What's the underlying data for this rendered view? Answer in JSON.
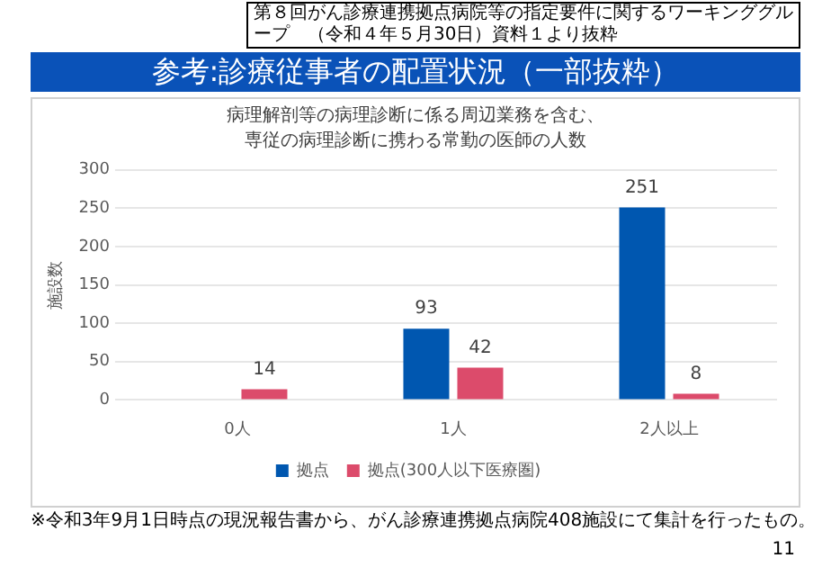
{
  "chart_data": {
    "type": "bar",
    "title": "参考:診療従事者の配置状況（一部抜粋）",
    "subtitle": "病理解剖等の病理診断に係る周辺業務を含む、専従の病理診断に携わる常勤の医師の人数",
    "ylabel": "施設数",
    "categories": [
      "0人",
      "1人",
      "2人以上"
    ],
    "series": [
      {
        "name": "拠点",
        "color": "#0057b0",
        "values": [
          0,
          93,
          251
        ],
        "value_labels": [
          null,
          "93",
          "251"
        ]
      },
      {
        "name": "拠点(300人以下医療圏)",
        "color": "#dc4b6b",
        "values": [
          14,
          42,
          8
        ],
        "value_labels": [
          "14",
          "42",
          "8"
        ]
      }
    ],
    "ylim": [
      0,
      300
    ],
    "yticks": [
      0,
      50,
      100,
      150,
      200,
      250,
      300
    ],
    "grid": "y",
    "legend": "bottom",
    "annotations": [
      "第８回がん診療連携拠点病院等の指定要件に関するワーキンググループ　（令和４年５月30日）資料１より抜粋",
      "※令和3年9月1日時点の現況報告書から、がん診療連携拠点病院408施設にて集計を行ったもの。",
      "11"
    ]
  }
}
